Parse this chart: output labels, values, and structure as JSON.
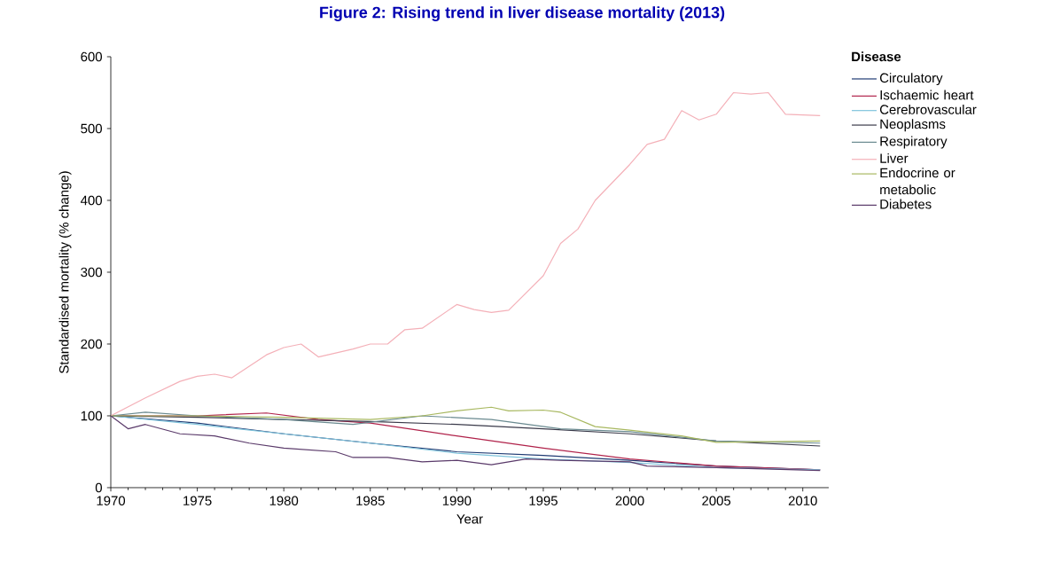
{
  "chart_data": {
    "type": "line",
    "title": "Figure 2: Rising trend in liver disease mortality (2013)",
    "xlabel": "Year",
    "ylabel": "Standardised mortality (% change)",
    "legend_title": "Disease",
    "legend": "right",
    "xlim": [
      1970,
      2011.5
    ],
    "xticks": [
      1970,
      1975,
      1980,
      1985,
      1990,
      1995,
      2000,
      2005,
      2010
    ],
    "ylim": [
      0,
      600
    ],
    "yticks": [
      0,
      100,
      200,
      300,
      400,
      500,
      600
    ],
    "grid": false,
    "series": [
      {
        "name": "Circulatory",
        "color": "#1f3b73",
        "x": [
          1970,
          1975,
          1980,
          1985,
          1990,
          1995,
          2000,
          2005,
          2011
        ],
        "values": [
          100,
          90,
          75,
          62,
          50,
          45,
          38,
          30,
          25
        ]
      },
      {
        "name": "Ischaemic heart",
        "color": "#b0224a",
        "x": [
          1970,
          1975,
          1979,
          1982,
          1985,
          1990,
          1995,
          2000,
          2005,
          2011
        ],
        "values": [
          100,
          100,
          104,
          95,
          90,
          72,
          55,
          40,
          30,
          25
        ]
      },
      {
        "name": "Cerebrovascular",
        "color": "#7fc4dc",
        "x": [
          1970,
          1975,
          1980,
          1985,
          1990,
          1995,
          2000,
          2005,
          2011
        ],
        "values": [
          100,
          88,
          75,
          62,
          48,
          40,
          35,
          28,
          25
        ]
      },
      {
        "name": "Neoplasms",
        "color": "#3a3a4a",
        "x": [
          1970,
          1975,
          1980,
          1985,
          1990,
          1995,
          2000,
          2005,
          2011
        ],
        "values": [
          100,
          98,
          95,
          92,
          88,
          82,
          75,
          65,
          58
        ]
      },
      {
        "name": "Respiratory",
        "color": "#6a8a90",
        "x": [
          1970,
          1972,
          1975,
          1980,
          1984,
          1988,
          1992,
          1996,
          2000,
          2005,
          2011
        ],
        "values": [
          100,
          105,
          100,
          95,
          88,
          100,
          95,
          82,
          78,
          65,
          62
        ]
      },
      {
        "name": "Liver",
        "color": "#f4b0b8",
        "x": [
          1970,
          1972,
          1974,
          1975,
          1976,
          1977,
          1979,
          1980,
          1981,
          1982,
          1984,
          1985,
          1986,
          1987,
          1988,
          1990,
          1991,
          1992,
          1993,
          1995,
          1996,
          1997,
          1998,
          2000,
          2001,
          2002,
          2003,
          2004,
          2005,
          2006,
          2007,
          2008,
          2009,
          2011
        ],
        "values": [
          100,
          125,
          148,
          155,
          158,
          153,
          185,
          195,
          200,
          182,
          193,
          200,
          200,
          220,
          222,
          255,
          248,
          244,
          247,
          295,
          340,
          360,
          400,
          450,
          478,
          485,
          525,
          512,
          520,
          550,
          548,
          550,
          520,
          518
        ]
      },
      {
        "name": "Endocrine or metabolic",
        "color": "#a8b860",
        "x": [
          1970,
          1975,
          1980,
          1985,
          1988,
          1990,
          1992,
          1993,
          1995,
          1996,
          1998,
          2000,
          2003,
          2005,
          2011
        ],
        "values": [
          100,
          100,
          98,
          95,
          100,
          107,
          112,
          107,
          108,
          105,
          85,
          80,
          72,
          63,
          65
        ]
      },
      {
        "name": "Diabetes",
        "color": "#5a3a6a",
        "x": [
          1970,
          1971,
          1972,
          1974,
          1976,
          1978,
          1980,
          1983,
          1984,
          1986,
          1988,
          1990,
          1992,
          1994,
          1996,
          2000,
          2001,
          2005,
          2011
        ],
        "values": [
          100,
          82,
          88,
          75,
          72,
          62,
          55,
          50,
          42,
          42,
          36,
          38,
          32,
          40,
          38,
          36,
          30,
          28,
          24
        ]
      }
    ]
  }
}
